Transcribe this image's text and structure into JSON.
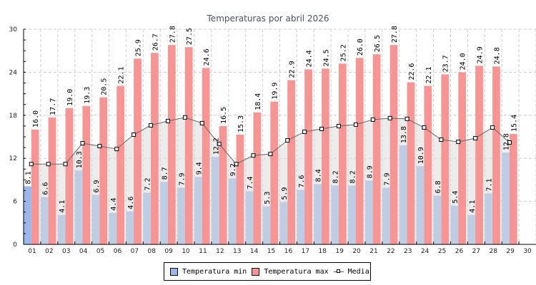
{
  "chart_data": {
    "type": "bar",
    "title": "Temperaturas por abril 2026",
    "xlabel": "",
    "ylabel": "",
    "ylim": [
      0,
      30
    ],
    "yticks": [
      "0",
      "6",
      "12",
      "18",
      "24",
      "30"
    ],
    "grid": true,
    "legend_position": "bottom-center",
    "categories": [
      "01",
      "02",
      "03",
      "04",
      "05",
      "06",
      "07",
      "08",
      "09",
      "10",
      "11",
      "12",
      "13",
      "14",
      "15",
      "16",
      "17",
      "18",
      "19",
      "20",
      "21",
      "22",
      "23",
      "24",
      "25",
      "26",
      "27",
      "28",
      "29",
      "30"
    ],
    "series": [
      {
        "name": "Temperatura min",
        "type": "bar",
        "color": "#99b8ee",
        "values": [
          8.1,
          6.6,
          4.1,
          10.3,
          6.9,
          4.4,
          4.6,
          7.2,
          8.7,
          7.9,
          9.4,
          12.2,
          9.2,
          7.4,
          5.3,
          5.9,
          7.6,
          8.4,
          8.2,
          8.2,
          8.9,
          7.9,
          13.8,
          10.9,
          6.8,
          5.4,
          4.1,
          7.1,
          12.8,
          null
        ],
        "labels": [
          "8.1",
          "6.6",
          "4.1",
          "10.3",
          "6.9",
          "4.4",
          "4.6",
          "7.2",
          "8.7",
          "7.9",
          "9.4",
          "12.2",
          "9.2",
          "7.4",
          "5.3",
          "5.9",
          "7.6",
          "8.4",
          "8.2",
          "8.2",
          "8.9",
          "7.9",
          "13.8",
          "10.9",
          "6.8",
          "5.4",
          "4.1",
          "7.1",
          "12.8",
          ""
        ]
      },
      {
        "name": "Temperatura max",
        "type": "bar",
        "color": "#f79595",
        "values": [
          16.0,
          17.7,
          19.0,
          19.3,
          20.5,
          22.1,
          25.9,
          26.7,
          27.8,
          27.5,
          24.6,
          16.5,
          15.3,
          18.4,
          19.9,
          22.9,
          24.4,
          24.5,
          25.2,
          26.0,
          26.5,
          27.8,
          22.6,
          22.1,
          23.7,
          24.0,
          24.9,
          24.8,
          15.4,
          null
        ],
        "labels": [
          "16.0",
          "17.7",
          "19.0",
          "19.3",
          "20.5",
          "22.1",
          "25.9",
          "26.7",
          "27.8",
          "27.5",
          "24.6",
          "16.5",
          "15.3",
          "18.4",
          "19.9",
          "22.9",
          "24.4",
          "24.5",
          "25.2",
          "26.0",
          "26.5",
          "27.8",
          "22.6",
          "22.1",
          "23.7",
          "24.0",
          "24.9",
          "24.8",
          "15.4",
          ""
        ]
      },
      {
        "name": "Media",
        "type": "line",
        "color": "#666666",
        "fill": "#dcdcdc",
        "values": [
          11.2,
          11.2,
          11.2,
          14.1,
          13.7,
          13.3,
          15.3,
          16.6,
          17.2,
          17.7,
          16.9,
          14.0,
          11.2,
          12.4,
          12.6,
          14.5,
          15.7,
          16.1,
          16.5,
          16.7,
          17.4,
          17.6,
          17.5,
          16.3,
          14.6,
          14.3,
          14.8,
          16.3,
          14.2,
          null
        ]
      }
    ]
  },
  "legend": {
    "items": [
      {
        "label": "Temperatura min",
        "color": "#99b8ee"
      },
      {
        "label": "Temperatura max",
        "color": "#f79595"
      },
      {
        "label": "Media"
      }
    ]
  }
}
